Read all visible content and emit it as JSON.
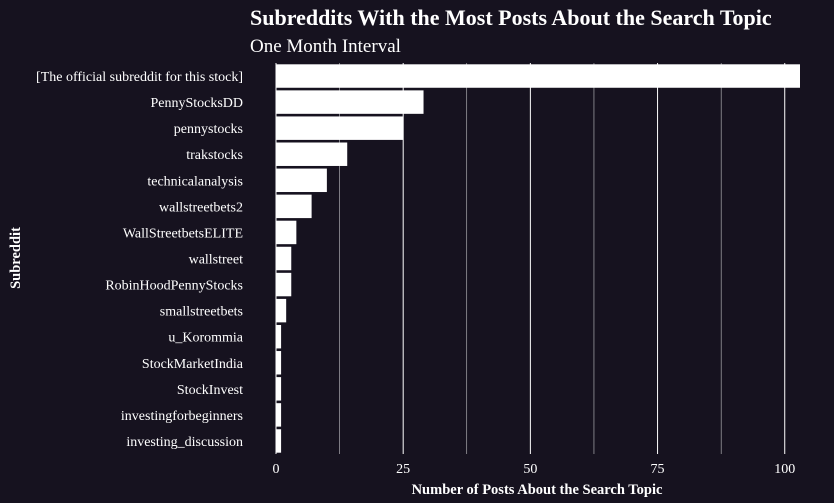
{
  "chart_data": {
    "type": "bar",
    "orientation": "horizontal",
    "title": "Subreddits With the Most Posts About the Search Topic",
    "subtitle": "One Month Interval",
    "xlabel": "Number of Posts About the Search Topic",
    "ylabel": "Subreddit",
    "xlim": [
      0,
      103
    ],
    "xticks": [
      0,
      25,
      50,
      75,
      100
    ],
    "grid": true,
    "categories": [
      "[The official subreddit for this stock]",
      "PennyStocksDD",
      "pennystocks",
      "trakstocks",
      "technicalanalysis",
      "wallstreetbets2",
      "WallStreetbetsELITE",
      "wallstreet",
      "RobinHoodPennyStocks",
      "smallstreetbets",
      "u_Korommia",
      "StockMarketIndia",
      "StockInvest",
      "investingforbeginners",
      "investing_discussion"
    ],
    "values": [
      103,
      29,
      25,
      14,
      10,
      7,
      4,
      3,
      3,
      2,
      1,
      1,
      1,
      1,
      1
    ],
    "colors": {
      "background": "#16121f",
      "bar": "#ffffff",
      "text": "#ffffff",
      "grid": "#ffffff"
    }
  }
}
